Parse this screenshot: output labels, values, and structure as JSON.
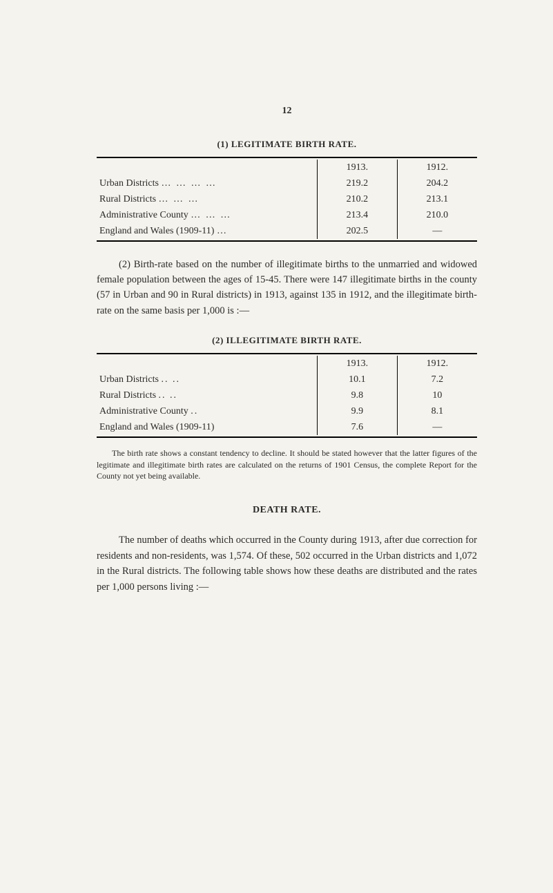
{
  "page_number": "12",
  "table1": {
    "title": "(1) LEGITIMATE BIRTH RATE.",
    "header_y1": "1913.",
    "header_y2": "1912.",
    "rows": [
      {
        "label": "Urban Districts",
        "dots": "… … … …",
        "v1": "219.2",
        "v2": "204.2"
      },
      {
        "label": "Rural Districts",
        "dots": "…   …   …",
        "v1": "210.2",
        "v2": "213.1"
      },
      {
        "label": "Administrative County",
        "dots": "… … …",
        "v1": "213.4",
        "v2": "210.0"
      },
      {
        "label": "England and Wales (1909-11)",
        "dots": "…",
        "v1": "202.5",
        "v2": "—"
      }
    ]
  },
  "para1": "(2) Birth-rate based on the number of illegitimate births to the unmarried and widowed female population between the ages of 15-45. There were 147 illegitimate births in the county (57 in Urban and 90 in Rural districts) in 1913, against 135 in 1912, and the illegitimate birth-rate on the same basis per 1,000 is :—",
  "table2": {
    "title": "(2) ILLEGITIMATE BIRTH RATE.",
    "header_y1": "1913.",
    "header_y2": "1912.",
    "rows": [
      {
        "label": "Urban Districts",
        "dots": "..   ..",
        "v1": "10.1",
        "v2": "7.2"
      },
      {
        "label": "Rural Districts",
        "dots": "..   ..",
        "v1": "9.8",
        "v2": "10"
      },
      {
        "label": "Administrative County",
        "dots": "..",
        "v1": "9.9",
        "v2": "8.1"
      },
      {
        "label": "England and Wales (1909-11)",
        "dots": "",
        "v1": "7.6",
        "v2": "—"
      }
    ]
  },
  "footnote": "The birth rate shows a constant tendency to decline. It should be stated however that the latter figures of the legitimate and illegitimate birth rates are calculated on the returns of 1901 Census, the complete Report for the County not yet being available.",
  "death_heading": "DEATH RATE.",
  "para2": "The number of deaths which occurred in the County during 1913, after due correction for residents and non-residents, was 1,574. Of these, 502 occurred in the Urban districts and 1,072 in the Rural districts. The following table shows how these deaths are distributed and the rates per 1,000 persons living :—"
}
